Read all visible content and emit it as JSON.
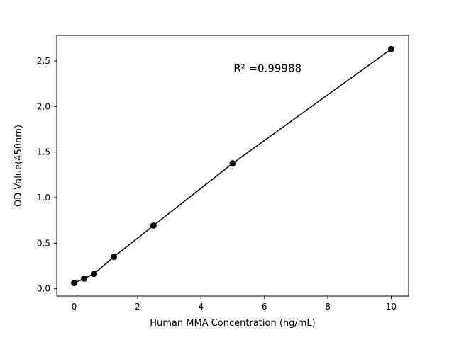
{
  "chart_data": {
    "type": "scatter",
    "title": "",
    "xlabel": "Human MMA Concentration (ng/mL)",
    "ylabel": "OD Value(450nm)",
    "x": [
      0,
      0.3125,
      0.625,
      1.25,
      2.5,
      5,
      10
    ],
    "y": [
      0.063,
      0.112,
      0.164,
      0.35,
      0.693,
      1.376,
      2.63
    ],
    "connect_line": true,
    "marker": "circle",
    "marker_color": "#000000",
    "line_color": "#000000",
    "xlim": [
      -0.55,
      10.55
    ],
    "ylim": [
      -0.08,
      2.78
    ],
    "xticks": [
      0,
      2,
      4,
      6,
      8,
      10
    ],
    "xtick_labels": [
      "0",
      "2",
      "4",
      "6",
      "8",
      "10"
    ],
    "yticks": [
      0.0,
      0.5,
      1.0,
      1.5,
      2.0,
      2.5
    ],
    "ytick_labels": [
      "0.0",
      "0.5",
      "1.0",
      "1.5",
      "2.0",
      "2.5"
    ],
    "grid": false,
    "legend": null,
    "annotation": {
      "text": "R² =0.99988",
      "x": 6.1,
      "y": 2.38
    }
  }
}
